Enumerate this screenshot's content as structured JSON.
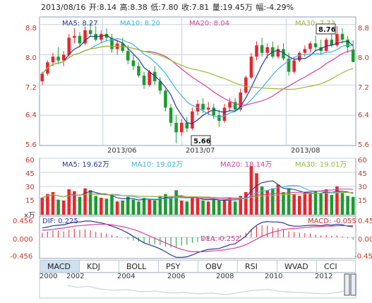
{
  "header": {
    "date": "2013/08/16",
    "open": "开:8.14",
    "high": "高:8.38",
    "low": "低:7.80",
    "close": "收:7.81",
    "volume": "量:19.45万",
    "change": "幅:-4.29%"
  },
  "price_panel": {
    "ma5": "MA5: 8.27",
    "ma10": "MA10: 8.20",
    "ma20": "MA20: 8.04",
    "ma30": "MA30: 7.73",
    "y_ticks_left": [
      "8.8",
      "8.0",
      "7.2",
      "6.4",
      "5.6"
    ],
    "y_ticks_right": [
      "8.8",
      "8.0",
      "7.2",
      "6.4",
      "5.6"
    ],
    "x_ticks": [
      "2013/06",
      "2013/07",
      "2013/08"
    ],
    "high_marker": "8.76",
    "low_marker": "5.66"
  },
  "volume_panel": {
    "ma5": "MA5: 19.62万",
    "ma10": "MA10: 19.02万",
    "ma20": "MA20: 18.14万",
    "ma30": "MA30: 19.01万",
    "unit": "x万",
    "y_ticks_left": [
      "60",
      "45",
      "30",
      "15"
    ],
    "y_ticks_right": [
      "60",
      "45",
      "30",
      "15"
    ]
  },
  "macd_panel": {
    "dif": "DIF: 0.225",
    "dea": "DEA: 0.252",
    "macd": "MACD: -0.055",
    "y_ticks_left": [
      "0.456",
      "0.000",
      "-0.456"
    ],
    "y_ticks_right": [
      "0.456",
      "0.000",
      "-0.456"
    ]
  },
  "tabs": [
    "MACD",
    "KDJ",
    "BOLL",
    "PSY",
    "OBV",
    "RSI",
    "WVAD",
    "CCI"
  ],
  "active_tab": "MACD",
  "timeline": {
    "years": [
      "2000",
      "2002",
      "2004",
      "2006",
      "2008",
      "2010",
      "2012"
    ]
  },
  "colors": {
    "up": "#e8262d",
    "down": "#1a9c2f",
    "ma5": "#23378f",
    "ma10": "#3fb4e0",
    "ma20": "#d4419a",
    "ma30": "#9cb83a",
    "grid": "#c8d2dc",
    "tab_active": "#cfe0f1"
  },
  "chart_data": {
    "type": "candlestick",
    "ohlc": [
      [
        7.3,
        7.55,
        7.2,
        7.5
      ],
      [
        7.5,
        7.85,
        7.45,
        7.8
      ],
      [
        7.8,
        8.05,
        7.7,
        7.95
      ],
      [
        7.95,
        8.2,
        7.75,
        7.85
      ],
      [
        7.85,
        8.1,
        7.7,
        8.0
      ],
      [
        8.0,
        8.55,
        7.95,
        8.45
      ],
      [
        8.45,
        8.7,
        8.3,
        8.5
      ],
      [
        8.5,
        8.6,
        8.2,
        8.3
      ],
      [
        8.3,
        8.75,
        8.25,
        8.65
      ],
      [
        8.65,
        8.85,
        8.5,
        8.55
      ],
      [
        8.55,
        8.75,
        8.35,
        8.4
      ],
      [
        8.4,
        8.65,
        8.3,
        8.55
      ],
      [
        8.55,
        8.7,
        8.35,
        8.45
      ],
      [
        8.45,
        8.55,
        8.05,
        8.15
      ],
      [
        8.15,
        8.4,
        8.0,
        8.3
      ],
      [
        8.3,
        8.45,
        8.05,
        8.1
      ],
      [
        8.1,
        8.25,
        7.75,
        7.85
      ],
      [
        7.85,
        8.0,
        7.6,
        7.7
      ],
      [
        7.7,
        7.8,
        7.4,
        7.45
      ],
      [
        7.45,
        7.55,
        7.1,
        7.2
      ],
      [
        7.2,
        7.6,
        7.15,
        7.55
      ],
      [
        7.55,
        7.7,
        7.2,
        7.3
      ],
      [
        7.3,
        7.4,
        6.95,
        7.05
      ],
      [
        7.05,
        7.1,
        6.5,
        6.6
      ],
      [
        6.6,
        6.7,
        6.1,
        6.2
      ],
      [
        6.2,
        6.4,
        5.66,
        5.95
      ],
      [
        5.95,
        6.3,
        5.85,
        6.2
      ],
      [
        6.2,
        6.35,
        5.95,
        6.05
      ],
      [
        6.05,
        6.6,
        6.0,
        6.5
      ],
      [
        6.5,
        6.8,
        6.4,
        6.7
      ],
      [
        6.7,
        6.85,
        6.45,
        6.55
      ],
      [
        6.55,
        6.75,
        6.4,
        6.6
      ],
      [
        6.6,
        6.7,
        6.3,
        6.4
      ],
      [
        6.4,
        6.55,
        6.1,
        6.25
      ],
      [
        6.25,
        6.7,
        6.2,
        6.6
      ],
      [
        6.6,
        6.85,
        6.5,
        6.75
      ],
      [
        6.75,
        6.85,
        6.5,
        6.55
      ],
      [
        6.55,
        7.1,
        6.5,
        7.0
      ],
      [
        7.0,
        7.45,
        6.95,
        7.4
      ],
      [
        7.4,
        8.05,
        7.35,
        7.95
      ],
      [
        7.95,
        8.35,
        7.85,
        8.25
      ],
      [
        8.25,
        8.45,
        7.95,
        8.05
      ],
      [
        8.05,
        8.3,
        7.9,
        8.2
      ],
      [
        8.2,
        8.35,
        7.9,
        7.95
      ],
      [
        7.95,
        8.25,
        7.9,
        8.15
      ],
      [
        8.15,
        8.3,
        7.85,
        7.9
      ],
      [
        7.9,
        8.05,
        7.45,
        7.55
      ],
      [
        7.55,
        7.95,
        7.5,
        7.85
      ],
      [
        7.85,
        8.1,
        7.8,
        8.05
      ],
      [
        8.05,
        8.25,
        7.95,
        8.15
      ],
      [
        8.15,
        8.35,
        8.05,
        8.3
      ],
      [
        8.3,
        8.5,
        8.1,
        8.2
      ],
      [
        8.2,
        8.4,
        8.0,
        8.1
      ],
      [
        8.1,
        8.45,
        8.05,
        8.4
      ],
      [
        8.4,
        8.6,
        8.2,
        8.25
      ],
      [
        8.25,
        8.76,
        8.2,
        8.55
      ],
      [
        8.55,
        8.7,
        8.3,
        8.4
      ],
      [
        8.4,
        8.5,
        8.05,
        8.2
      ],
      [
        8.14,
        8.38,
        7.8,
        7.81
      ]
    ],
    "volume": [
      18,
      22,
      24,
      16,
      15,
      27,
      25,
      19,
      28,
      26,
      20,
      18,
      17,
      21,
      14,
      15,
      19,
      16,
      14,
      18,
      16,
      15,
      20,
      22,
      17,
      26,
      15,
      14,
      19,
      18,
      15,
      14,
      16,
      15,
      16,
      18,
      14,
      20,
      24,
      52,
      44,
      30,
      26,
      28,
      32,
      24,
      28,
      22,
      20,
      24,
      22,
      25,
      23,
      27,
      21,
      30,
      23,
      20,
      19
    ],
    "macd_hist": [
      0.1,
      0.12,
      0.15,
      0.14,
      0.13,
      0.16,
      0.18,
      0.16,
      0.17,
      0.15,
      0.12,
      0.1,
      0.08,
      0.05,
      0.03,
      0.0,
      -0.04,
      -0.07,
      -0.1,
      -0.13,
      -0.14,
      -0.15,
      -0.17,
      -0.2,
      -0.22,
      -0.22,
      -0.18,
      -0.16,
      -0.12,
      -0.1,
      -0.08,
      -0.07,
      -0.08,
      -0.06,
      -0.03,
      -0.01,
      0.0,
      0.05,
      0.1,
      0.18,
      0.24,
      0.26,
      0.25,
      0.22,
      0.2,
      0.17,
      0.13,
      0.11,
      0.1,
      0.09,
      0.08,
      0.06,
      0.04,
      0.05,
      0.03,
      0.04,
      0.02,
      -0.02,
      -0.055
    ],
    "dif": [
      0.2,
      0.22,
      0.25,
      0.26,
      0.27,
      0.3,
      0.33,
      0.33,
      0.35,
      0.35,
      0.33,
      0.31,
      0.28,
      0.24,
      0.2,
      0.15,
      0.09,
      0.02,
      -0.05,
      -0.12,
      -0.16,
      -0.2,
      -0.25,
      -0.31,
      -0.38,
      -0.43,
      -0.43,
      -0.42,
      -0.38,
      -0.33,
      -0.29,
      -0.26,
      -0.25,
      -0.24,
      -0.2,
      -0.16,
      -0.14,
      -0.06,
      0.03,
      0.16,
      0.26,
      0.32,
      0.34,
      0.33,
      0.33,
      0.31,
      0.26,
      0.24,
      0.24,
      0.25,
      0.26,
      0.26,
      0.25,
      0.27,
      0.26,
      0.28,
      0.27,
      0.24,
      0.225
    ],
    "dea": [
      0.15,
      0.16,
      0.17,
      0.19,
      0.2,
      0.22,
      0.24,
      0.25,
      0.26,
      0.27,
      0.28,
      0.28,
      0.28,
      0.27,
      0.25,
      0.23,
      0.2,
      0.17,
      0.13,
      0.08,
      0.03,
      -0.02,
      -0.07,
      -0.12,
      -0.17,
      -0.22,
      -0.26,
      -0.29,
      -0.31,
      -0.31,
      -0.31,
      -0.3,
      -0.29,
      -0.28,
      -0.27,
      -0.25,
      -0.23,
      -0.2,
      -0.16,
      -0.1,
      -0.04,
      0.02,
      0.07,
      0.11,
      0.14,
      0.17,
      0.18,
      0.19,
      0.2,
      0.21,
      0.22,
      0.23,
      0.23,
      0.24,
      0.24,
      0.25,
      0.25,
      0.25,
      0.252
    ],
    "ylim_price": [
      5.6,
      9.0
    ],
    "ylim_volume": [
      0,
      60
    ],
    "ylim_macd": [
      -0.456,
      0.456
    ]
  }
}
